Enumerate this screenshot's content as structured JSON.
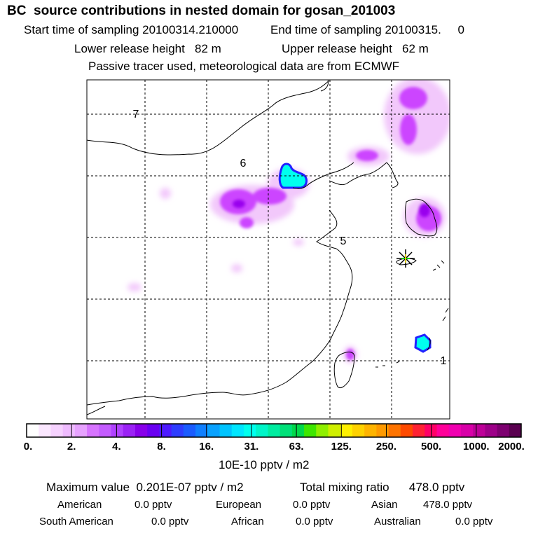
{
  "header": {
    "title": "BC  source contributions in nested domain for gosan_201003",
    "sampling_start": "Start time of sampling 20100314.210000",
    "sampling_end": "End time of sampling 20100315.     0",
    "lower_release": "Lower release height   82 m",
    "upper_release": "Upper release height   62 m",
    "note": "Passive tracer used, meteorological data are from ECMWF"
  },
  "map": {
    "contour_labels": [
      "7",
      "6",
      "5",
      "1"
    ],
    "station_marker": "star-marker",
    "colors": {
      "magenta_light": "#f2c8fb",
      "magenta": "#cc44ff",
      "violet": "#9900ee",
      "blue": "#2222ff",
      "cyan": "#00ffee"
    }
  },
  "chart_data": {
    "type": "heatmap",
    "title": "BC  source contributions in nested domain for gosan_201003",
    "units": "10E-10 pptv / m2",
    "colorbar_ticks": [
      "0.",
      "2.",
      "4.",
      "8.",
      "16.",
      "31.",
      "63.",
      "125.",
      "250.",
      "500.",
      "1000.",
      "2000."
    ],
    "colorbar_colors": [
      "#ffffff",
      "#fbe7ff",
      "#f6d2ff",
      "#efbbff",
      "#e7a2ff",
      "#d774ff",
      "#c45cff",
      "#b041ff",
      "#9b22f5",
      "#8800ea",
      "#6a00f2",
      "#4d1aff",
      "#2e3dff",
      "#1b5cff",
      "#107fff",
      "#0aa2ff",
      "#00c4ff",
      "#00e6ff",
      "#00ffee",
      "#00f5c8",
      "#00eca0",
      "#00e078",
      "#00d84a",
      "#3ee600",
      "#8fef00",
      "#cfef00",
      "#fff000",
      "#ffd200",
      "#ffb400",
      "#ff9a00",
      "#ff7400",
      "#ff4a00",
      "#ff2233",
      "#ff0066",
      "#ff0099",
      "#f000b0",
      "#d800a8",
      "#bd0098",
      "#9d0088",
      "#7d0070",
      "#5a0050"
    ],
    "maximum_value": "Maximum value  0.201E-07 pptv / m2",
    "total_mixing_ratio": "Total mixing ratio      478.0 pptv",
    "source_regions": [
      {
        "name": "American",
        "value": "0.0 pptv"
      },
      {
        "name": "European",
        "value": "0.0 pptv"
      },
      {
        "name": "Asian",
        "value": "478.0 pptv"
      },
      {
        "name": "South American",
        "value": "0.0 pptv"
      },
      {
        "name": "African",
        "value": "0.0 pptv"
      },
      {
        "name": "Australian",
        "value": "0.0 pptv"
      }
    ]
  }
}
